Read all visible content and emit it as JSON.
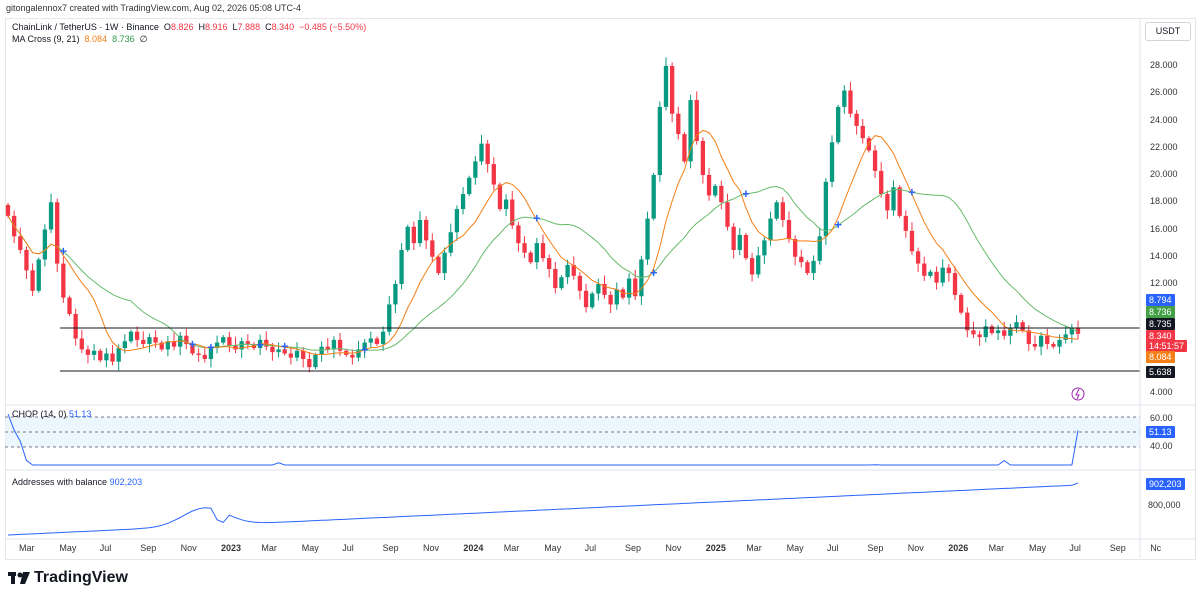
{
  "credit": "gitongalennox7 created with TradingView.com, Aug 02, 2026 05:08 UTC-4",
  "symbol": {
    "name": "ChainLink / TetherUS · 1W · Binance",
    "open_label": "O",
    "open": "8.826",
    "high_label": "H",
    "high": "8.916",
    "low_label": "L",
    "low": "7.888",
    "close_label": "C",
    "close": "8.340",
    "change": "−0.485 (−5.50%)"
  },
  "ma": {
    "label": "MA Cross (9, 21)",
    "fast": "8.084",
    "slow": "8.736",
    "extra": "∅"
  },
  "currency_button": "USDT",
  "price_axis": [
    "28.000",
    "26.000",
    "24.000",
    "22.000",
    "20.000",
    "18.000",
    "16.000",
    "14.000",
    "12.000",
    "4.000"
  ],
  "price_tags": {
    "p8794": "8.794",
    "p8736": "8.736",
    "p8735": "8.735",
    "p8340": "8.340",
    "countdown": "14:51:57",
    "p8084": "8.084",
    "p5638": "5.638"
  },
  "chop": {
    "label": "CHOP (14, 0)",
    "value": "51.13",
    "axis": [
      "60.00",
      "40.00"
    ],
    "tag": "51.13"
  },
  "addresses": {
    "label": "Addresses with balance",
    "value": "902,203",
    "axis": [
      "800,000"
    ],
    "tag": "902,203"
  },
  "time_axis": [
    "Mar",
    "May",
    "Jul",
    "Sep",
    "Nov",
    "2023",
    "Mar",
    "May",
    "Jul",
    "Sep",
    "Nov",
    "2024",
    "Mar",
    "May",
    "Jul",
    "Sep",
    "Nov",
    "2025",
    "Mar",
    "May",
    "Jul",
    "Sep",
    "Nov",
    "2026",
    "Mar",
    "May",
    "Jul",
    "Sep",
    "Nc"
  ],
  "brand": "TradingView",
  "colors": {
    "up": "#089981",
    "down": "#f23645",
    "fast_ma": "#f57f17",
    "slow_ma": "#43a047",
    "indicator": "#2962ff"
  },
  "chart_data": {
    "type": "candlestick",
    "y_unit": "USDT",
    "ylim": [
      4,
      30
    ],
    "closes": [
      17.0,
      15.5,
      14.5,
      13.0,
      11.5,
      13.8,
      16.0,
      18.0,
      13.5,
      11.0,
      9.8,
      8.0,
      7.2,
      6.8,
      7.1,
      6.4,
      6.9,
      6.3,
      7.3,
      7.8,
      8.5,
      7.9,
      7.6,
      8.1,
      7.7,
      7.2,
      7.8,
      7.4,
      8.2,
      7.6,
      6.9,
      6.8,
      6.5,
      7.3,
      7.7,
      8.1,
      7.5,
      7.2,
      7.8,
      7.6,
      7.3,
      7.9,
      7.4,
      7.0,
      7.2,
      6.9,
      6.6,
      7.1,
      6.5,
      5.9,
      6.8,
      7.4,
      7.2,
      7.9,
      7.1,
      6.8,
      6.6,
      7.2,
      7.7,
      8.0,
      7.6,
      8.5,
      10.5,
      12.0,
      14.5,
      16.2,
      15.0,
      16.7,
      15.2,
      14.0,
      12.8,
      14.3,
      15.8,
      17.5,
      18.6,
      19.8,
      21.0,
      22.3,
      20.8,
      19.3,
      17.5,
      18.2,
      16.3,
      15.0,
      14.3,
      13.6,
      15.0,
      13.9,
      13.1,
      11.7,
      12.5,
      13.4,
      12.6,
      11.5,
      10.3,
      11.3,
      12.0,
      11.2,
      10.5,
      11.6,
      11.0,
      12.4,
      11.1,
      13.8,
      16.8,
      20.0,
      25.0,
      28.0,
      24.5,
      23.0,
      21.0,
      25.5,
      22.5,
      20.0,
      18.5,
      19.2,
      18.0,
      16.2,
      14.5,
      15.6,
      13.9,
      12.7,
      14.1,
      15.2,
      16.8,
      18.0,
      16.7,
      15.3,
      14.0,
      13.6,
      12.8,
      13.7,
      15.5,
      19.5,
      22.4,
      25.0,
      26.2,
      24.5,
      23.6,
      22.7,
      21.8,
      20.3,
      18.6,
      17.4,
      19.1,
      17.0,
      15.9,
      14.4,
      13.5,
      12.6,
      12.9,
      12.1,
      13.2,
      12.8,
      11.2,
      9.9,
      8.6,
      8.3,
      8.1,
      8.9,
      8.4,
      8.6,
      8.2,
      8.8,
      9.2,
      8.6,
      7.6,
      7.4,
      8.2,
      7.6,
      7.4,
      7.9,
      8.3,
      8.8,
      8.34
    ],
    "ma_fast": {
      "name": "MA Cross (9, 21)",
      "last": 8.084
    },
    "ma_slow": {
      "last": 8.736
    },
    "horizontal_lines": [
      8.735,
      5.638
    ],
    "chop": {
      "last": 51.13,
      "band": [
        40,
        60
      ]
    },
    "addresses_with_balance": {
      "last": 902203
    }
  }
}
